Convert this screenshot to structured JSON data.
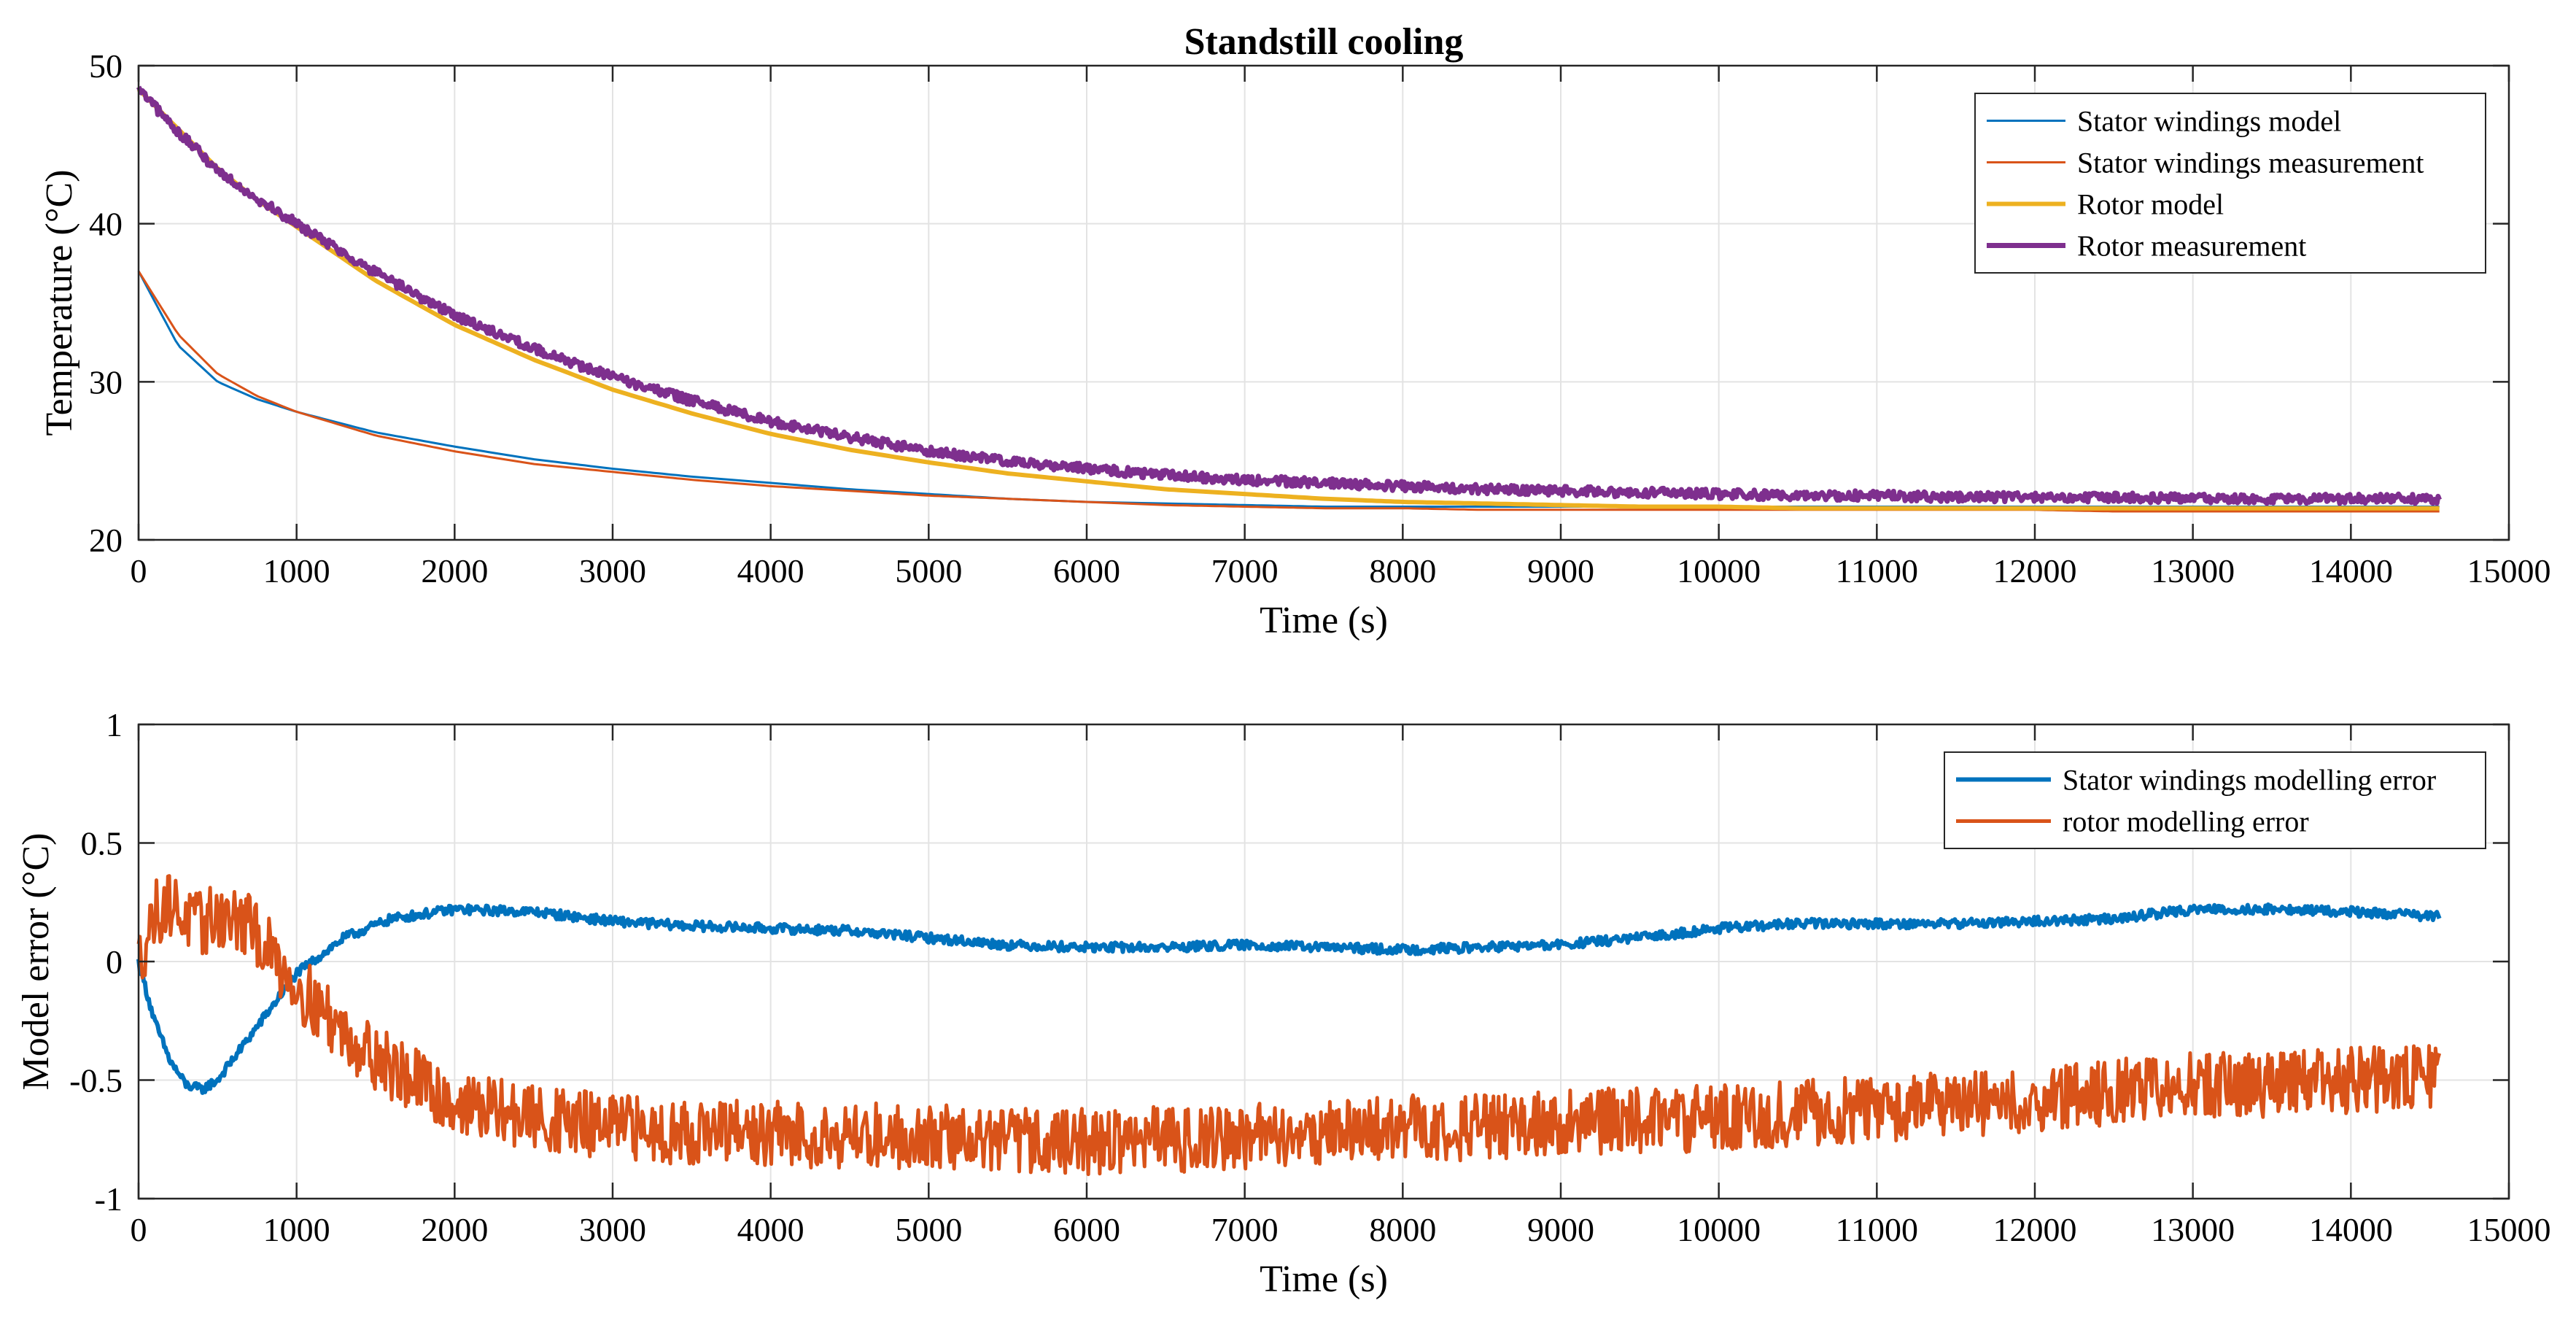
{
  "chart_data": [
    {
      "type": "line",
      "title": "Standstill cooling",
      "xlabel": "Time (s)",
      "ylabel": "Temperature (°C)",
      "xlim": [
        0,
        15000
      ],
      "ylim": [
        20,
        50
      ],
      "grid": true,
      "legend_position": "top-right",
      "x_ticks": [
        0,
        1000,
        2000,
        3000,
        4000,
        5000,
        6000,
        7000,
        8000,
        9000,
        10000,
        11000,
        12000,
        13000,
        14000,
        15000
      ],
      "x_tick_labels": [
        "0",
        "1000",
        "2000",
        "3000",
        "4000",
        "5000",
        "6000",
        "7000",
        "8000",
        "9000",
        "10000",
        "11000",
        "12000",
        "13000",
        "14000",
        "15000"
      ],
      "y_ticks": [
        20,
        30,
        40,
        50
      ],
      "y_tick_labels": [
        "20",
        "30",
        "40",
        "50"
      ],
      "x": [
        0,
        250,
        500,
        750,
        1000,
        1500,
        2000,
        2500,
        3000,
        3500,
        4000,
        4500,
        5000,
        5500,
        6000,
        6500,
        7000,
        7500,
        8000,
        8500,
        9000,
        9500,
        10000,
        10500,
        11000,
        11500,
        12000,
        12500,
        13000,
        13500,
        14000,
        14560
      ],
      "series": [
        {
          "name": "Stator windings model",
          "color": "#0072BD",
          "width": 3,
          "noise": 0,
          "values": [
            37.0,
            32.3,
            30.0,
            28.9,
            28.1,
            26.8,
            25.9,
            25.1,
            24.5,
            24.0,
            23.6,
            23.2,
            22.9,
            22.6,
            22.4,
            22.3,
            22.2,
            22.1,
            22.1,
            22.1,
            22.1,
            22.1,
            22.1,
            22.1,
            22.1,
            22.1,
            22.1,
            22.1,
            22.1,
            22.1,
            22.1,
            22.1
          ]
        },
        {
          "name": "Stator windings measurement",
          "color": "#D95319",
          "width": 3,
          "noise": 0,
          "values": [
            37.0,
            33.0,
            30.5,
            29.1,
            28.1,
            26.6,
            25.6,
            24.8,
            24.3,
            23.8,
            23.4,
            23.1,
            22.8,
            22.6,
            22.4,
            22.2,
            22.1,
            22.0,
            22.0,
            21.9,
            21.9,
            21.9,
            21.9,
            21.9,
            21.9,
            21.9,
            21.9,
            21.8,
            21.8,
            21.8,
            21.8,
            21.8
          ]
        },
        {
          "name": "Rotor model",
          "color": "#EDB120",
          "width": 6,
          "noise": 0,
          "values": [
            48.5,
            46.0,
            43.5,
            41.5,
            39.8,
            36.4,
            33.6,
            31.4,
            29.5,
            28.0,
            26.7,
            25.7,
            24.9,
            24.2,
            23.7,
            23.2,
            22.9,
            22.6,
            22.4,
            22.3,
            22.2,
            22.1,
            22.1,
            22.0,
            22.0,
            22.0,
            22.0,
            22.0,
            22.0,
            22.0,
            22.0,
            22.0
          ]
        },
        {
          "name": "Rotor measurement",
          "color": "#7E2F8E",
          "width": 7,
          "noise": 0.3,
          "values": [
            48.5,
            45.8,
            43.4,
            41.6,
            40.0,
            36.9,
            34.2,
            32.1,
            30.3,
            28.8,
            27.5,
            26.5,
            25.6,
            25.0,
            24.5,
            24.1,
            23.8,
            23.6,
            23.4,
            23.2,
            23.1,
            23.0,
            22.9,
            22.8,
            22.8,
            22.7,
            22.7,
            22.7,
            22.6,
            22.6,
            22.6,
            22.6
          ]
        }
      ]
    },
    {
      "type": "line",
      "title": "",
      "xlabel": "Time (s)",
      "ylabel": "Model error (°C)",
      "xlim": [
        0,
        15000
      ],
      "ylim": [
        -1,
        1
      ],
      "grid": true,
      "legend_position": "top-right",
      "x_ticks": [
        0,
        1000,
        2000,
        3000,
        4000,
        5000,
        6000,
        7000,
        8000,
        9000,
        10000,
        11000,
        12000,
        13000,
        14000,
        15000
      ],
      "x_tick_labels": [
        "0",
        "1000",
        "2000",
        "3000",
        "4000",
        "5000",
        "6000",
        "7000",
        "8000",
        "9000",
        "10000",
        "11000",
        "12000",
        "13000",
        "14000",
        "15000"
      ],
      "y_ticks": [
        -1,
        -0.5,
        0,
        0.5,
        1
      ],
      "y_tick_labels": [
        "-1",
        "-0.5",
        "0",
        "0.5",
        "1"
      ],
      "x": [
        0,
        100,
        200,
        300,
        400,
        500,
        700,
        1000,
        1300,
        1600,
        2000,
        2500,
        3000,
        3500,
        4000,
        4500,
        5000,
        5500,
        6000,
        6500,
        7000,
        7500,
        8000,
        8500,
        9000,
        9500,
        10000,
        10500,
        11000,
        11500,
        12000,
        12500,
        13000,
        13500,
        14000,
        14560
      ],
      "series": [
        {
          "name": "Stator windings modelling error",
          "color": "#0072BD",
          "width": 6,
          "noise": 0.02,
          "values": [
            0.0,
            -0.25,
            -0.42,
            -0.52,
            -0.54,
            -0.5,
            -0.32,
            -0.05,
            0.1,
            0.18,
            0.22,
            0.21,
            0.17,
            0.15,
            0.14,
            0.13,
            0.1,
            0.07,
            0.06,
            0.06,
            0.07,
            0.06,
            0.05,
            0.06,
            0.07,
            0.1,
            0.14,
            0.16,
            0.16,
            0.16,
            0.17,
            0.18,
            0.22,
            0.22,
            0.21,
            0.19
          ]
        },
        {
          "name": "rotor modelling error",
          "color": "#D95319",
          "width": 5,
          "noise": 0.14,
          "values": [
            0.0,
            0.2,
            0.25,
            0.18,
            0.15,
            0.2,
            0.15,
            -0.1,
            -0.3,
            -0.45,
            -0.6,
            -0.66,
            -0.7,
            -0.72,
            -0.73,
            -0.73,
            -0.74,
            -0.75,
            -0.76,
            -0.75,
            -0.74,
            -0.72,
            -0.7,
            -0.7,
            -0.68,
            -0.67,
            -0.66,
            -0.64,
            -0.62,
            -0.6,
            -0.58,
            -0.55,
            -0.52,
            -0.52,
            -0.5,
            -0.49
          ]
        }
      ]
    }
  ]
}
